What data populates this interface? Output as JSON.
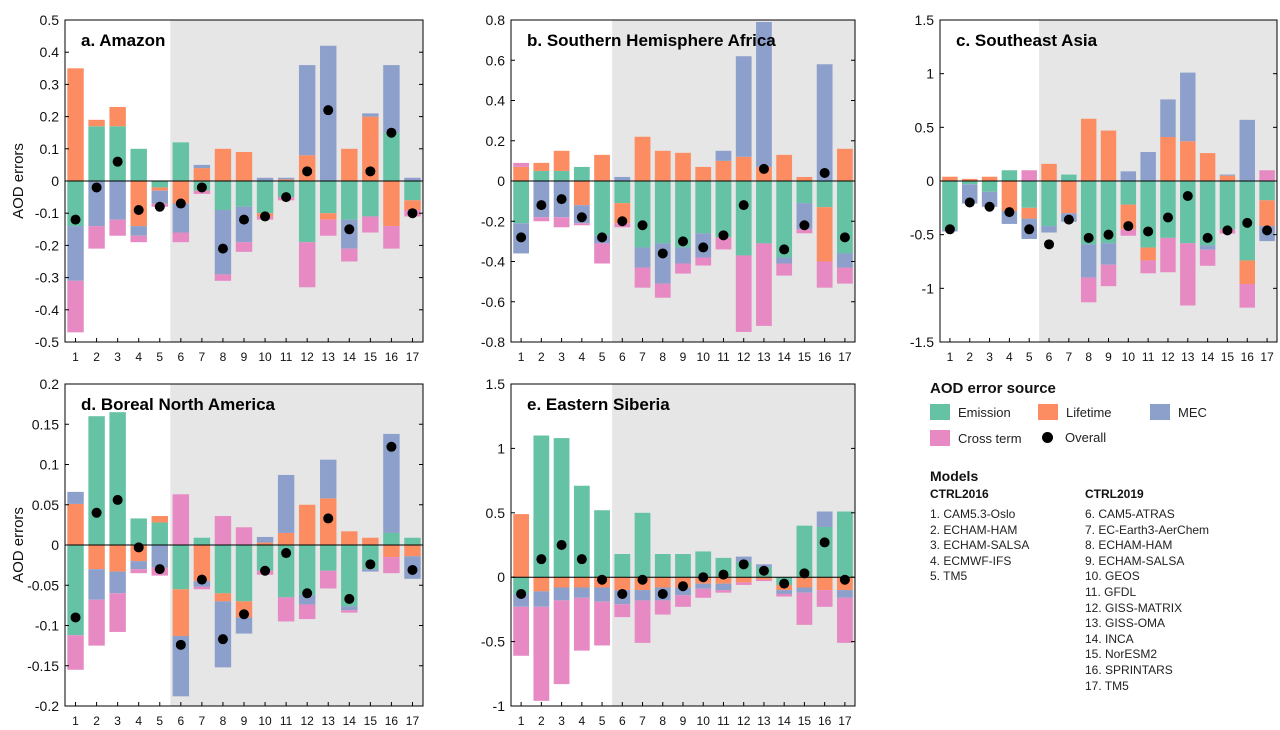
{
  "colors": {
    "emission": "#66c2a5",
    "lifetime": "#fc8d62",
    "mec": "#8da0cb",
    "cross": "#e78ac3",
    "overall": "#000000",
    "ctrl2019_bg": "#e6e6e6"
  },
  "legend": {
    "title": "AOD error source",
    "items": [
      {
        "key": "emission",
        "label": "Emission"
      },
      {
        "key": "lifetime",
        "label": "Lifetime"
      },
      {
        "key": "mec",
        "label": "MEC"
      },
      {
        "key": "cross",
        "label": "Cross term"
      },
      {
        "key": "overall",
        "label": "Overall"
      }
    ]
  },
  "models": {
    "title": "Models",
    "ctrl2016": {
      "heading": "CTRL2016",
      "items": [
        "1. CAM5.3-Oslo",
        "2. ECHAM-HAM",
        "3. ECHAM-SALSA",
        "4. ECMWF-IFS",
        "5. TM5"
      ]
    },
    "ctrl2019": {
      "heading": "CTRL2019",
      "items": [
        "6. CAM5-ATRAS",
        "7. EC-Earth3-AerChem",
        "8. ECHAM-HAM",
        "9. ECHAM-SALSA",
        "10. GEOS",
        "11. GFDL",
        "12. GISS-MATRIX",
        "13. GISS-OMA",
        "14. INCA",
        "15. NorESM2",
        "16. SPRINTARS",
        "17. TM5"
      ]
    }
  },
  "chart_data": [
    {
      "type": "bar",
      "stacked": true,
      "title": "a. Amazon",
      "ylabel": "AOD errors",
      "ylim": [
        -0.5,
        0.5
      ],
      "yticks": [
        -0.5,
        -0.4,
        -0.3,
        -0.2,
        -0.1,
        0,
        0.1,
        0.2,
        0.3,
        0.4,
        0.5
      ],
      "ytick_labels": [
        "-0.5",
        "-0.4",
        "-0.3",
        "-0.2",
        "-0.1",
        "0",
        "0.1",
        "0.2",
        "0.3",
        "0.4",
        "0.5"
      ],
      "categories": [
        "1",
        "2",
        "3",
        "4",
        "5",
        "6",
        "7",
        "8",
        "9",
        "10",
        "11",
        "12",
        "13",
        "14",
        "15",
        "16",
        "17"
      ],
      "shaded_from": 6,
      "series": [
        {
          "name": "Emission",
          "key": "emission",
          "values": [
            -0.14,
            0.17,
            0.17,
            0.1,
            -0.02,
            0.12,
            -0.03,
            -0.09,
            -0.08,
            -0.1,
            -0.05,
            -0.19,
            -0.1,
            -0.12,
            -0.11,
            0.15,
            -0.06
          ]
        },
        {
          "name": "Lifetime",
          "key": "lifetime",
          "values": [
            0.35,
            0.02,
            0.06,
            -0.14,
            -0.01,
            -0.07,
            0.04,
            0.1,
            0.09,
            -0.01,
            0.005,
            0.08,
            -0.02,
            0.1,
            0.2,
            -0.14,
            -0.03
          ]
        },
        {
          "name": "MEC",
          "key": "mec",
          "values": [
            -0.17,
            -0.14,
            -0.12,
            -0.03,
            -0.04,
            -0.09,
            0.01,
            -0.2,
            -0.11,
            0.01,
            0.005,
            0.28,
            0.42,
            -0.09,
            0.01,
            0.21,
            0.01
          ]
        },
        {
          "name": "Cross term",
          "key": "cross",
          "values": [
            -0.16,
            -0.07,
            -0.05,
            -0.02,
            -0.01,
            -0.03,
            -0.01,
            -0.02,
            -0.03,
            -0.01,
            -0.01,
            -0.14,
            -0.05,
            -0.04,
            -0.05,
            -0.07,
            -0.02
          ]
        }
      ],
      "overall": [
        -0.12,
        -0.02,
        0.06,
        -0.09,
        -0.08,
        -0.07,
        -0.02,
        -0.21,
        -0.12,
        -0.11,
        -0.05,
        0.03,
        0.22,
        -0.15,
        0.03,
        0.15,
        -0.1
      ]
    },
    {
      "type": "bar",
      "stacked": true,
      "title": "b. Southern Hemisphere Africa",
      "ylabel": "",
      "ylim": [
        -0.8,
        0.8
      ],
      "yticks": [
        -0.8,
        -0.6,
        -0.4,
        -0.2,
        0,
        0.2,
        0.4,
        0.6,
        0.8
      ],
      "ytick_labels": [
        "-0.8",
        "-0.6",
        "-0.4",
        "-0.2",
        "0",
        "0.2",
        "0.4",
        "0.6",
        "0.8"
      ],
      "categories": [
        "1",
        "2",
        "3",
        "4",
        "5",
        "6",
        "7",
        "8",
        "9",
        "10",
        "11",
        "12",
        "13",
        "14",
        "15",
        "16",
        "17"
      ],
      "shaded_from": 6,
      "series": [
        {
          "name": "Emission",
          "key": "emission",
          "values": [
            -0.21,
            0.05,
            0.05,
            0.07,
            -0.27,
            -0.11,
            -0.33,
            -0.31,
            -0.33,
            -0.26,
            -0.28,
            -0.37,
            -0.31,
            -0.38,
            -0.11,
            -0.13,
            -0.36
          ]
        },
        {
          "name": "Lifetime",
          "key": "lifetime",
          "values": [
            0.07,
            0.04,
            0.1,
            -0.12,
            0.13,
            -0.1,
            0.22,
            0.15,
            0.14,
            0.07,
            0.1,
            0.12,
            0.07,
            0.13,
            0.02,
            -0.27,
            0.16
          ]
        },
        {
          "name": "MEC",
          "key": "mec",
          "values": [
            -0.15,
            -0.18,
            -0.18,
            -0.09,
            -0.04,
            0.02,
            -0.1,
            -0.2,
            -0.08,
            -0.12,
            0.05,
            0.5,
            0.72,
            -0.03,
            -0.13,
            0.58,
            -0.07
          ]
        },
        {
          "name": "Cross term",
          "key": "cross",
          "values": [
            0.02,
            -0.02,
            -0.05,
            -0.01,
            -0.1,
            -0.02,
            -0.1,
            -0.07,
            -0.05,
            -0.04,
            -0.06,
            -0.38,
            -0.41,
            -0.06,
            -0.02,
            -0.13,
            -0.08
          ]
        }
      ],
      "overall": [
        -0.28,
        -0.12,
        -0.09,
        -0.18,
        -0.28,
        -0.2,
        -0.22,
        -0.36,
        -0.3,
        -0.33,
        -0.27,
        -0.12,
        0.06,
        -0.34,
        -0.22,
        0.04,
        -0.28
      ]
    },
    {
      "type": "bar",
      "stacked": true,
      "title": "c. Southeast Asia",
      "ylabel": "",
      "ylim": [
        -1.5,
        1.5
      ],
      "yticks": [
        -1.5,
        -1,
        -0.5,
        0,
        0.5,
        1,
        1.5
      ],
      "ytick_labels": [
        "-1.5",
        "-1",
        "-0.5",
        "0",
        "0.5",
        "1",
        "1.5"
      ],
      "categories": [
        "1",
        "2",
        "3",
        "4",
        "5",
        "6",
        "7",
        "8",
        "9",
        "10",
        "11",
        "12",
        "13",
        "14",
        "15",
        "16",
        "17"
      ],
      "shaded_from": 6,
      "series": [
        {
          "name": "Emission",
          "key": "emission",
          "values": [
            -0.45,
            -0.03,
            -0.1,
            0.1,
            -0.25,
            -0.42,
            0.06,
            -0.59,
            -0.58,
            -0.22,
            -0.62,
            -0.53,
            -0.58,
            -0.6,
            -0.45,
            -0.74,
            -0.18
          ]
        },
        {
          "name": "Lifetime",
          "key": "lifetime",
          "values": [
            0.04,
            0.02,
            0.04,
            -0.28,
            -0.1,
            0.16,
            -0.3,
            0.58,
            0.47,
            -0.23,
            -0.12,
            0.41,
            0.37,
            0.26,
            0.05,
            -0.22,
            -0.24
          ]
        },
        {
          "name": "MEC",
          "key": "mec",
          "values": [
            -0.02,
            -0.18,
            -0.14,
            -0.12,
            -0.19,
            -0.06,
            -0.08,
            -0.31,
            -0.2,
            0.09,
            0.27,
            0.35,
            0.64,
            -0.04,
            0.01,
            0.57,
            -0.14
          ]
        },
        {
          "name": "Cross term",
          "key": "cross",
          "values": [
            0.0,
            0.0,
            0.0,
            0.0,
            0.1,
            0.0,
            0.0,
            -0.23,
            -0.2,
            -0.06,
            -0.12,
            -0.32,
            -0.58,
            -0.15,
            -0.04,
            -0.22,
            0.1
          ]
        }
      ],
      "overall": [
        -0.45,
        -0.2,
        -0.24,
        -0.29,
        -0.45,
        -0.59,
        -0.36,
        -0.53,
        -0.5,
        -0.42,
        -0.47,
        -0.34,
        -0.14,
        -0.53,
        -0.46,
        -0.39,
        -0.46
      ]
    },
    {
      "type": "bar",
      "stacked": true,
      "title": "d. Boreal North America",
      "ylabel": "AOD errors",
      "ylim": [
        -0.2,
        0.2
      ],
      "yticks": [
        -0.2,
        -0.15,
        -0.1,
        -0.05,
        0,
        0.05,
        0.1,
        0.15,
        0.2
      ],
      "ytick_labels": [
        "-0.2",
        "-0.15",
        "-0.1",
        "-0.05",
        "0",
        "0.05",
        "0.1",
        "0.15",
        "0.2"
      ],
      "categories": [
        "1",
        "2",
        "3",
        "4",
        "5",
        "6",
        "7",
        "8",
        "9",
        "10",
        "11",
        "12",
        "13",
        "14",
        "15",
        "16",
        "17"
      ],
      "shaded_from": 6,
      "series": [
        {
          "name": "Emission",
          "key": "emission",
          "values": [
            -0.112,
            0.16,
            0.165,
            0.033,
            0.028,
            -0.055,
            0.009,
            -0.06,
            -0.07,
            -0.032,
            -0.065,
            -0.062,
            -0.032,
            -0.076,
            -0.03,
            0.015,
            0.009
          ]
        },
        {
          "name": "Lifetime",
          "key": "lifetime",
          "values": [
            0.051,
            -0.03,
            -0.033,
            -0.02,
            0.008,
            -0.058,
            -0.045,
            -0.01,
            -0.02,
            0.003,
            0.015,
            0.05,
            0.058,
            0.017,
            0.009,
            -0.015,
            -0.014
          ]
        },
        {
          "name": "MEC",
          "key": "mec",
          "values": [
            0.015,
            -0.038,
            -0.027,
            -0.01,
            -0.028,
            -0.075,
            -0.007,
            -0.082,
            -0.02,
            0.007,
            0.072,
            -0.012,
            0.048,
            -0.005,
            -0.003,
            0.123,
            -0.028
          ]
        },
        {
          "name": "Cross term",
          "key": "cross",
          "values": [
            -0.043,
            -0.057,
            -0.048,
            -0.005,
            -0.01,
            0.063,
            -0.003,
            0.036,
            0.022,
            -0.005,
            -0.03,
            -0.018,
            -0.022,
            -0.003,
            0.0,
            -0.02,
            0.0
          ]
        }
      ],
      "overall": [
        -0.09,
        0.04,
        0.056,
        -0.003,
        -0.03,
        -0.124,
        -0.043,
        -0.117,
        -0.086,
        -0.032,
        -0.01,
        -0.06,
        0.033,
        -0.067,
        -0.024,
        0.122,
        -0.031
      ]
    },
    {
      "type": "bar",
      "stacked": true,
      "title": "e. Eastern Siberia",
      "ylabel": "",
      "ylim": [
        -1,
        1.5
      ],
      "yticks": [
        -1,
        -0.5,
        0,
        0.5,
        1,
        1.5
      ],
      "ytick_labels": [
        "-1",
        "-0.5",
        "0",
        "0.5",
        "1",
        "1.5"
      ],
      "categories": [
        "1",
        "2",
        "3",
        "4",
        "5",
        "6",
        "7",
        "8",
        "9",
        "10",
        "11",
        "12",
        "13",
        "14",
        "15",
        "16",
        "17"
      ],
      "shaded_from": 6,
      "series": [
        {
          "name": "Emission",
          "key": "emission",
          "values": [
            -0.13,
            1.1,
            1.08,
            0.71,
            0.52,
            0.18,
            0.5,
            0.18,
            0.18,
            0.2,
            0.15,
            0.12,
            0.08,
            -0.06,
            0.4,
            0.39,
            0.51
          ]
        },
        {
          "name": "Lifetime",
          "key": "lifetime",
          "values": [
            0.49,
            -0.11,
            -0.08,
            -0.08,
            -0.08,
            -0.1,
            -0.1,
            -0.08,
            -0.08,
            -0.05,
            -0.05,
            -0.04,
            -0.02,
            -0.04,
            -0.08,
            -0.1,
            -0.1
          ]
        },
        {
          "name": "MEC",
          "key": "mec",
          "values": [
            -0.1,
            -0.12,
            -0.1,
            -0.08,
            -0.11,
            -0.11,
            -0.08,
            -0.1,
            -0.06,
            -0.04,
            -0.05,
            0.04,
            0.02,
            -0.03,
            -0.04,
            0.12,
            -0.06
          ]
        },
        {
          "name": "Cross term",
          "key": "cross",
          "values": [
            -0.38,
            -0.73,
            -0.65,
            -0.41,
            -0.34,
            -0.1,
            -0.33,
            -0.11,
            -0.09,
            -0.07,
            -0.02,
            -0.02,
            -0.01,
            -0.02,
            -0.25,
            -0.13,
            -0.35
          ]
        }
      ],
      "overall": [
        -0.13,
        0.14,
        0.25,
        0.14,
        -0.02,
        -0.13,
        -0.02,
        -0.13,
        -0.07,
        0.0,
        0.02,
        0.1,
        0.05,
        -0.05,
        0.03,
        0.27,
        -0.02
      ]
    }
  ]
}
